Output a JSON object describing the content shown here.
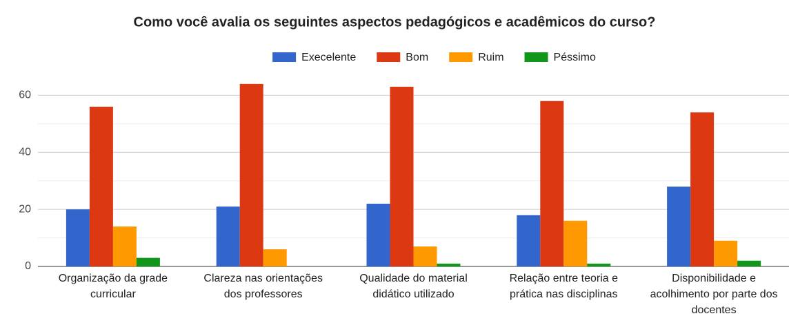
{
  "chart_data": {
    "type": "bar",
    "title": "Como você avalia os seguintes aspectos pedagógicos e acadêmicos do curso?",
    "categories": [
      "Organização da grade curricular",
      "Clareza nas orientações dos professores",
      "Qualidade do material didático utilizado",
      "Relação entre teoria e prática nas disciplinas",
      "Disponibilidade e acolhimento por parte dos docentes"
    ],
    "series": [
      {
        "name": "Execelente",
        "color": "#3366cc",
        "values": [
          20,
          21,
          22,
          18,
          28
        ]
      },
      {
        "name": "Bom",
        "color": "#dc3912",
        "values": [
          56,
          64,
          63,
          58,
          54
        ]
      },
      {
        "name": "Ruim",
        "color": "#ff9900",
        "values": [
          14,
          6,
          7,
          16,
          9
        ]
      },
      {
        "name": "Péssimo",
        "color": "#109618",
        "values": [
          3,
          0,
          1,
          1,
          2
        ]
      }
    ],
    "ylim": [
      0,
      70
    ],
    "yticks": [
      0,
      20,
      40,
      60
    ],
    "minor_yticks": [
      10,
      30,
      50
    ],
    "grid": true,
    "legend": "top"
  }
}
